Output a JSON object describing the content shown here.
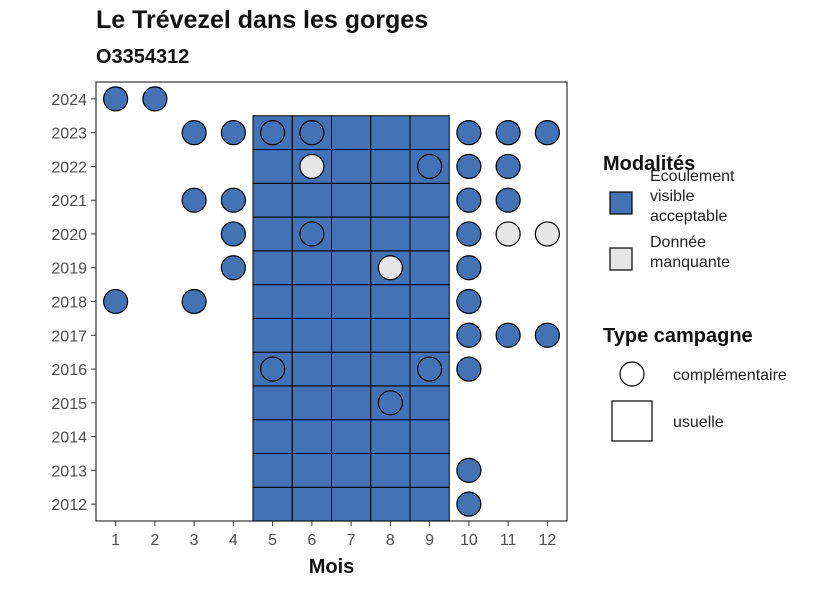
{
  "title": "Le Trévezel dans les gorges",
  "subtitle": "O3354312",
  "chart_data": {
    "type": "tile",
    "title": "Le Trévezel dans les gorges",
    "subtitle": "O3354312",
    "xlabel": "Mois",
    "ylabel": "",
    "x_ticks": [
      1,
      2,
      3,
      4,
      5,
      6,
      7,
      8,
      9,
      10,
      11,
      12
    ],
    "y_ticks": [
      2012,
      2013,
      2014,
      2015,
      2016,
      2017,
      2018,
      2019,
      2020,
      2021,
      2022,
      2023,
      2024
    ],
    "grid": false,
    "legend_position": "right",
    "colors": {
      "acceptable": "#4473b5",
      "missing": "#e6e6e6"
    },
    "legend": {
      "modalites_title": "Modalités",
      "modalites": [
        {
          "key": "acceptable",
          "label_lines": [
            "Ecoulement",
            "visible",
            "acceptable"
          ]
        },
        {
          "key": "missing",
          "label_lines": [
            "Donnée",
            "manquante"
          ]
        }
      ],
      "type_title": "Type campagne",
      "types": [
        {
          "key": "complementaire",
          "label": "complémentaire",
          "shape": "circle"
        },
        {
          "key": "usuelle",
          "label": "usuelle",
          "shape": "square"
        }
      ]
    },
    "usuelle": {
      "months": [
        5,
        6,
        7,
        8,
        9
      ],
      "years": [
        2012,
        2013,
        2014,
        2015,
        2016,
        2017,
        2018,
        2019,
        2020,
        2021,
        2022,
        2023
      ],
      "modalite": "acceptable"
    },
    "complementaire": [
      {
        "year": 2024,
        "month": 1,
        "modalite": "acceptable"
      },
      {
        "year": 2024,
        "month": 2,
        "modalite": "acceptable"
      },
      {
        "year": 2023,
        "month": 3,
        "modalite": "acceptable"
      },
      {
        "year": 2023,
        "month": 4,
        "modalite": "acceptable"
      },
      {
        "year": 2023,
        "month": 5,
        "modalite": "acceptable"
      },
      {
        "year": 2023,
        "month": 6,
        "modalite": "acceptable"
      },
      {
        "year": 2023,
        "month": 10,
        "modalite": "acceptable"
      },
      {
        "year": 2023,
        "month": 11,
        "modalite": "acceptable"
      },
      {
        "year": 2023,
        "month": 12,
        "modalite": "acceptable"
      },
      {
        "year": 2022,
        "month": 6,
        "modalite": "missing"
      },
      {
        "year": 2022,
        "month": 9,
        "modalite": "acceptable"
      },
      {
        "year": 2022,
        "month": 10,
        "modalite": "acceptable"
      },
      {
        "year": 2022,
        "month": 11,
        "modalite": "acceptable"
      },
      {
        "year": 2021,
        "month": 3,
        "modalite": "acceptable"
      },
      {
        "year": 2021,
        "month": 4,
        "modalite": "acceptable"
      },
      {
        "year": 2021,
        "month": 10,
        "modalite": "acceptable"
      },
      {
        "year": 2021,
        "month": 11,
        "modalite": "acceptable"
      },
      {
        "year": 2020,
        "month": 4,
        "modalite": "acceptable"
      },
      {
        "year": 2020,
        "month": 6,
        "modalite": "acceptable"
      },
      {
        "year": 2020,
        "month": 10,
        "modalite": "acceptable"
      },
      {
        "year": 2020,
        "month": 11,
        "modalite": "missing"
      },
      {
        "year": 2020,
        "month": 12,
        "modalite": "missing"
      },
      {
        "year": 2019,
        "month": 4,
        "modalite": "acceptable"
      },
      {
        "year": 2019,
        "month": 8,
        "modalite": "missing"
      },
      {
        "year": 2019,
        "month": 10,
        "modalite": "acceptable"
      },
      {
        "year": 2018,
        "month": 1,
        "modalite": "acceptable"
      },
      {
        "year": 2018,
        "month": 3,
        "modalite": "acceptable"
      },
      {
        "year": 2018,
        "month": 10,
        "modalite": "acceptable"
      },
      {
        "year": 2017,
        "month": 10,
        "modalite": "acceptable"
      },
      {
        "year": 2017,
        "month": 11,
        "modalite": "acceptable"
      },
      {
        "year": 2017,
        "month": 12,
        "modalite": "acceptable"
      },
      {
        "year": 2016,
        "month": 5,
        "modalite": "acceptable"
      },
      {
        "year": 2016,
        "month": 9,
        "modalite": "acceptable"
      },
      {
        "year": 2016,
        "month": 10,
        "modalite": "acceptable"
      },
      {
        "year": 2015,
        "month": 8,
        "modalite": "acceptable"
      },
      {
        "year": 2013,
        "month": 10,
        "modalite": "acceptable"
      },
      {
        "year": 2012,
        "month": 10,
        "modalite": "acceptable"
      }
    ]
  }
}
